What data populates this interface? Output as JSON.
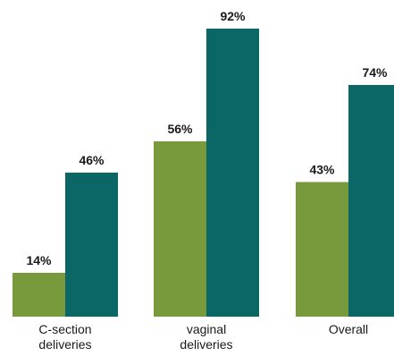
{
  "chart_data": {
    "type": "bar",
    "title": "",
    "xlabel": "",
    "ylabel": "",
    "ylim": [
      0,
      100
    ],
    "grid": false,
    "legend": "none",
    "categories": [
      [
        "C-section",
        "deliveries"
      ],
      [
        "vaginal",
        "deliveries"
      ],
      [
        "Overall"
      ]
    ],
    "series": [
      {
        "color": "#789a3c",
        "values": [
          14,
          56,
          43
        ],
        "labels": [
          "14%",
          "56%",
          "43%"
        ]
      },
      {
        "color": "#0a6766",
        "values": [
          46,
          92,
          74
        ],
        "labels": [
          "46%",
          "92%",
          "74%"
        ]
      }
    ]
  }
}
